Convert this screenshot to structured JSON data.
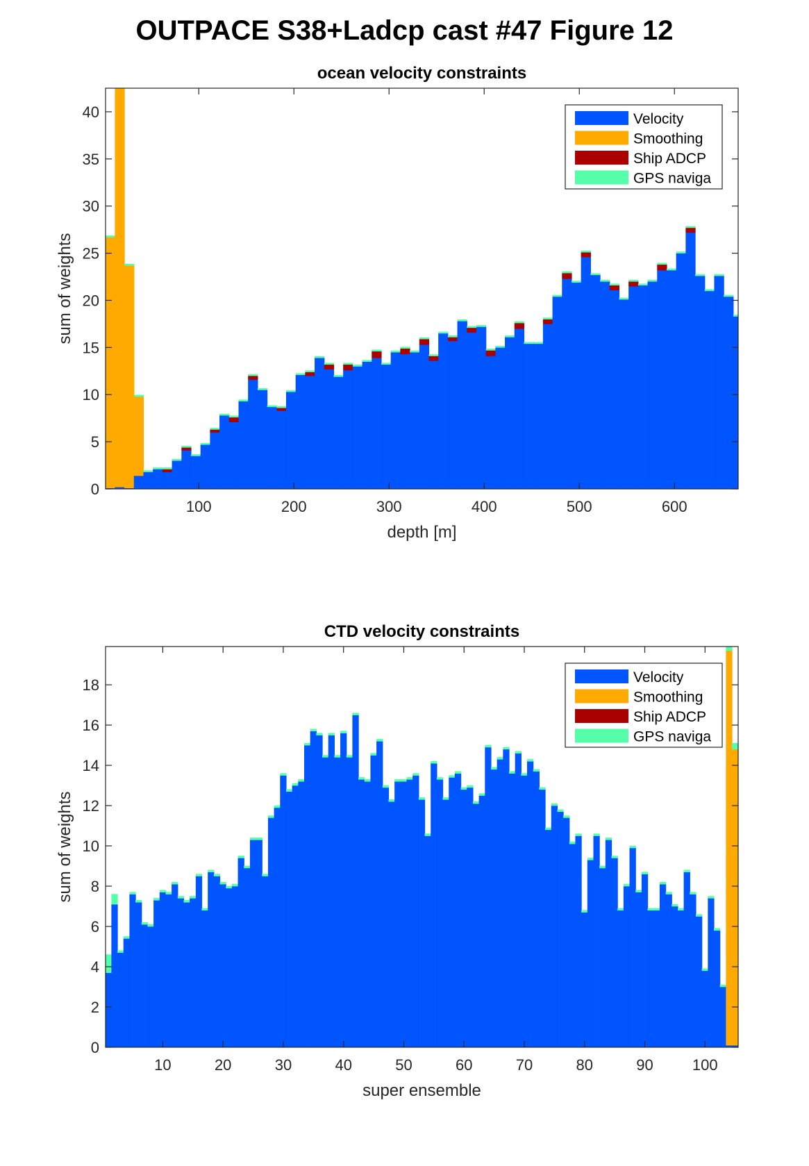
{
  "figure": {
    "suptitle": "OUTPACE S38+Ladcp cast #47  Figure 12"
  },
  "colors": {
    "velocity": "#0055ff",
    "smoothing": "#ffaa00",
    "ship_adcp": "#aa0000",
    "gps": "#55ffaa"
  },
  "chart_data": [
    {
      "type": "bar",
      "stacked": true,
      "title": "ocean velocity constraints",
      "xlabel": "depth [m]",
      "ylabel": "sum of weights",
      "xlim": [
        2,
        667
      ],
      "ylim": [
        0,
        42.5
      ],
      "xticks": [
        100,
        200,
        300,
        400,
        500,
        600
      ],
      "yticks": [
        0,
        5,
        10,
        15,
        20,
        25,
        30,
        35,
        40
      ],
      "legend_position": "top-right",
      "legend": [
        "Velocity",
        "Smoothing",
        "Ship ADCP",
        "GPS naviga"
      ],
      "bin_width": 10,
      "x": [
        7,
        17,
        27,
        37,
        47,
        57,
        67,
        77,
        87,
        97,
        107,
        117,
        127,
        137,
        147,
        157,
        167,
        177,
        187,
        197,
        207,
        217,
        227,
        237,
        247,
        257,
        267,
        277,
        287,
        297,
        307,
        317,
        327,
        337,
        347,
        357,
        367,
        377,
        387,
        397,
        407,
        417,
        427,
        437,
        447,
        457,
        467,
        477,
        487,
        497,
        507,
        517,
        527,
        537,
        547,
        557,
        567,
        577,
        587,
        597,
        607,
        617,
        627,
        637,
        647,
        657,
        667
      ],
      "series": [
        {
          "name": "Velocity",
          "values": [
            0.1,
            0.2,
            0.1,
            1.4,
            1.8,
            2.1,
            1.8,
            3.0,
            4.1,
            3.5,
            4.7,
            6.0,
            7.8,
            7.1,
            9.3,
            11.6,
            10.5,
            8.7,
            8.3,
            10.3,
            12.1,
            12.0,
            13.9,
            12.7,
            11.9,
            12.6,
            13.0,
            13.5,
            13.9,
            13.2,
            14.5,
            14.3,
            14.5,
            15.3,
            13.6,
            16.5,
            15.7,
            17.8,
            16.6,
            17.2,
            14.1,
            15.0,
            16.1,
            17.0,
            15.4,
            15.4,
            17.5,
            20.4,
            22.3,
            21.9,
            24.6,
            22.7,
            22.0,
            21.1,
            20.1,
            21.5,
            21.6,
            22.0,
            23.2,
            23.2,
            25.0,
            27.2,
            22.6,
            21.0,
            22.6,
            20.4,
            18.3
          ]
        },
        {
          "name": "Smoothing",
          "values": [
            26.6,
            42.3,
            23.6,
            8.4,
            0,
            0,
            0,
            0,
            0,
            0,
            0,
            0,
            0,
            0,
            0,
            0,
            0,
            0,
            0,
            0,
            0,
            0,
            0,
            0,
            0,
            0,
            0,
            0,
            0,
            0,
            0,
            0,
            0,
            0,
            0,
            0,
            0,
            0,
            0,
            0,
            0,
            0,
            0,
            0,
            0,
            0,
            0,
            0,
            0,
            0,
            0,
            0,
            0,
            0,
            0,
            0,
            0,
            0,
            0,
            0,
            0,
            0,
            0,
            0,
            0,
            0,
            0
          ]
        },
        {
          "name": "Ship ADCP",
          "values": [
            0,
            0,
            0,
            0,
            0,
            0,
            0.3,
            0,
            0.3,
            0,
            0,
            0.3,
            0,
            0.5,
            0,
            0.4,
            0,
            0,
            0.3,
            0,
            0,
            0.4,
            0,
            0.5,
            0,
            0.6,
            0,
            0,
            0.7,
            0,
            0,
            0.6,
            0,
            0.6,
            0.5,
            0,
            0.4,
            0,
            0.5,
            0,
            0.6,
            0,
            0,
            0.6,
            0,
            0,
            0.5,
            0,
            0.6,
            0,
            0.5,
            0,
            0,
            0.5,
            0,
            0.5,
            0,
            0,
            0.6,
            0,
            0,
            0.5,
            0,
            0,
            0,
            0,
            0
          ]
        },
        {
          "name": "GPS naviga",
          "values": [
            0.15,
            0.15,
            0.15,
            0.15,
            0.15,
            0.15,
            0.15,
            0.15,
            0.15,
            0.15,
            0.15,
            0.15,
            0.15,
            0.15,
            0.15,
            0.15,
            0.15,
            0.15,
            0.15,
            0.15,
            0.15,
            0.15,
            0.15,
            0.15,
            0.15,
            0.15,
            0.15,
            0.15,
            0.15,
            0.15,
            0.15,
            0.15,
            0.15,
            0.15,
            0.15,
            0.15,
            0.15,
            0.15,
            0.15,
            0.15,
            0.15,
            0.15,
            0.15,
            0.15,
            0.15,
            0.15,
            0.15,
            0.15,
            0.15,
            0.15,
            0.15,
            0.15,
            0.15,
            0.15,
            0.15,
            0.15,
            0.15,
            0.15,
            0.15,
            0.15,
            0.15,
            0.15,
            0.15,
            0.15,
            0.15,
            0.15,
            0.15
          ]
        }
      ]
    },
    {
      "type": "bar",
      "stacked": true,
      "title": "CTD velocity constraints",
      "xlabel": "super ensemble",
      "ylabel": "sum of weights",
      "xlim": [
        0.5,
        105.5
      ],
      "ylim": [
        0,
        19.9
      ],
      "xticks": [
        10,
        20,
        30,
        40,
        50,
        60,
        70,
        80,
        90,
        100
      ],
      "yticks": [
        0,
        2,
        4,
        6,
        8,
        10,
        12,
        14,
        16,
        18
      ],
      "legend_position": "top-right",
      "legend": [
        "Velocity",
        "Smoothing",
        "Ship ADCP",
        "GPS naviga"
      ],
      "bin_width": 1,
      "x": [
        1,
        2,
        3,
        4,
        5,
        6,
        7,
        8,
        9,
        10,
        11,
        12,
        13,
        14,
        15,
        16,
        17,
        18,
        19,
        20,
        21,
        22,
        23,
        24,
        25,
        26,
        27,
        28,
        29,
        30,
        31,
        32,
        33,
        34,
        35,
        36,
        37,
        38,
        39,
        40,
        41,
        42,
        43,
        44,
        45,
        46,
        47,
        48,
        49,
        50,
        51,
        52,
        53,
        54,
        55,
        56,
        57,
        58,
        59,
        60,
        61,
        62,
        63,
        64,
        65,
        66,
        67,
        68,
        69,
        70,
        71,
        72,
        73,
        74,
        75,
        76,
        77,
        78,
        79,
        80,
        81,
        82,
        83,
        84,
        85,
        86,
        87,
        88,
        89,
        90,
        91,
        92,
        93,
        94,
        95,
        96,
        97,
        98,
        99,
        100,
        101,
        102,
        103,
        104,
        105
      ],
      "series": [
        {
          "name": "Velocity",
          "values": [
            3.7,
            7.1,
            4.7,
            5.4,
            7.6,
            7.2,
            6.1,
            6.0,
            7.3,
            7.7,
            7.6,
            8.1,
            7.4,
            7.2,
            7.4,
            8.5,
            6.8,
            8.7,
            8.5,
            8.1,
            7.9,
            8.0,
            9.4,
            8.9,
            10.3,
            10.3,
            8.5,
            11.4,
            11.9,
            13.5,
            12.7,
            13.0,
            13.2,
            15.0,
            15.7,
            15.5,
            14.4,
            15.5,
            14.4,
            15.6,
            14.4,
            16.5,
            13.3,
            13.2,
            14.5,
            15.2,
            12.9,
            12.2,
            13.2,
            13.2,
            13.3,
            13.5,
            12.3,
            10.5,
            14.1,
            13.3,
            12.3,
            13.4,
            13.6,
            12.8,
            12.9,
            12.1,
            12.5,
            14.9,
            13.8,
            14.3,
            14.8,
            13.6,
            14.6,
            13.5,
            14.2,
            13.7,
            12.8,
            10.8,
            12.0,
            11.7,
            11.4,
            10.1,
            10.5,
            6.7,
            9.3,
            10.5,
            8.9,
            10.3,
            9.4,
            6.8,
            8.0,
            9.9,
            7.7,
            8.6,
            6.8,
            6.8,
            8.1,
            7.6,
            7.0,
            6.8,
            8.7,
            7.6,
            6.5,
            3.8,
            7.4,
            5.8,
            3.0,
            0.1,
            0.1
          ]
        },
        {
          "name": "Smoothing",
          "values": [
            0,
            0,
            0,
            0,
            0,
            0,
            0,
            0,
            0,
            0,
            0,
            0,
            0,
            0,
            0,
            0,
            0,
            0,
            0,
            0,
            0,
            0,
            0,
            0,
            0,
            0,
            0,
            0,
            0,
            0,
            0,
            0,
            0,
            0,
            0,
            0,
            0,
            0,
            0,
            0,
            0,
            0,
            0,
            0,
            0,
            0,
            0,
            0,
            0,
            0,
            0,
            0,
            0,
            0,
            0,
            0,
            0,
            0,
            0,
            0,
            0,
            0,
            0,
            0,
            0,
            0,
            0,
            0,
            0,
            0,
            0,
            0,
            0,
            0,
            0,
            0,
            0,
            0,
            0,
            0,
            0,
            0,
            0,
            0,
            0,
            0,
            0,
            0,
            0,
            0,
            0,
            0,
            0,
            0,
            0,
            0,
            0,
            0,
            0,
            0,
            0,
            0,
            0,
            19.6,
            14.7
          ]
        },
        {
          "name": "Ship ADCP",
          "values": [
            0,
            0,
            0,
            0,
            0,
            0,
            0,
            0,
            0,
            0,
            0,
            0,
            0,
            0,
            0,
            0,
            0,
            0,
            0,
            0,
            0,
            0,
            0,
            0,
            0,
            0,
            0,
            0,
            0,
            0,
            0,
            0,
            0,
            0,
            0,
            0,
            0,
            0,
            0,
            0,
            0,
            0,
            0,
            0,
            0,
            0,
            0,
            0,
            0,
            0,
            0,
            0,
            0,
            0,
            0,
            0,
            0,
            0,
            0,
            0,
            0,
            0,
            0,
            0,
            0,
            0,
            0,
            0,
            0,
            0,
            0,
            0,
            0,
            0,
            0,
            0,
            0,
            0,
            0,
            0,
            0,
            0,
            0,
            0,
            0,
            0,
            0,
            0,
            0,
            0,
            0,
            0,
            0,
            0,
            0,
            0,
            0,
            0,
            0,
            0,
            0,
            0,
            0,
            0,
            0
          ]
        },
        {
          "name": "GPS naviga",
          "values": [
            0.9,
            0.5,
            0.1,
            0.1,
            0.1,
            0.1,
            0.1,
            0.1,
            0.1,
            0.1,
            0.1,
            0.1,
            0.1,
            0.1,
            0.1,
            0.1,
            0.1,
            0.1,
            0.1,
            0.1,
            0.1,
            0.1,
            0.1,
            0.1,
            0.1,
            0.1,
            0.1,
            0.1,
            0.1,
            0.1,
            0.1,
            0.1,
            0.1,
            0.1,
            0.1,
            0.1,
            0.1,
            0.1,
            0.1,
            0.1,
            0.1,
            0.1,
            0.1,
            0.1,
            0.1,
            0.1,
            0.1,
            0.1,
            0.1,
            0.1,
            0.1,
            0.1,
            0.1,
            0.1,
            0.1,
            0.1,
            0.1,
            0.1,
            0.1,
            0.1,
            0.1,
            0.1,
            0.1,
            0.1,
            0.1,
            0.1,
            0.1,
            0.1,
            0.1,
            0.1,
            0.1,
            0.1,
            0.1,
            0.1,
            0.1,
            0.1,
            0.1,
            0.1,
            0.1,
            0.1,
            0.1,
            0.1,
            0.1,
            0.1,
            0.1,
            0.1,
            0.1,
            0.1,
            0.1,
            0.1,
            0.1,
            0.1,
            0.1,
            0.1,
            0.1,
            0.1,
            0.1,
            0.1,
            0.1,
            0.1,
            0.1,
            0.1,
            0.1,
            0.2,
            0.3
          ]
        }
      ]
    }
  ]
}
